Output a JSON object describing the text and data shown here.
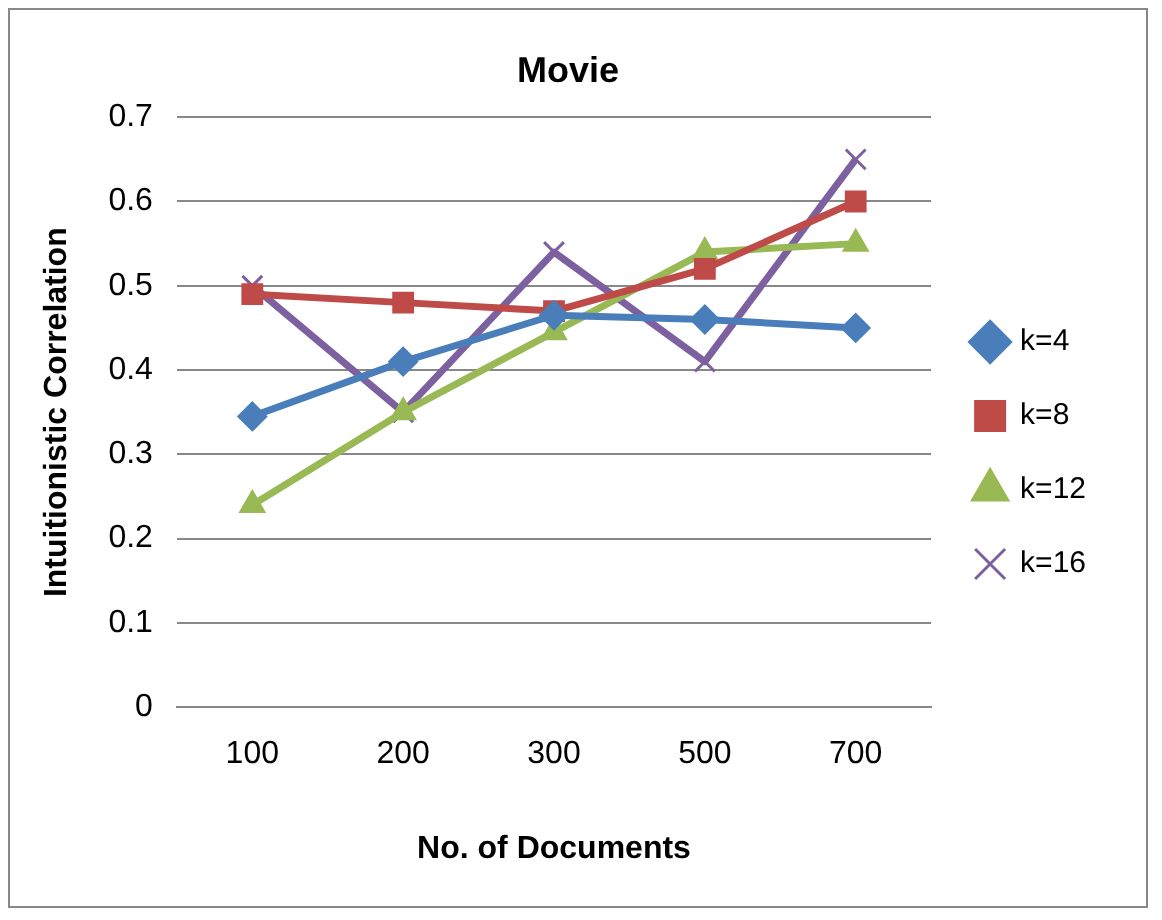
{
  "chart_data": {
    "type": "line",
    "title": "Movie",
    "xlabel": "No. of Documents",
    "ylabel": "Intuitionistic Correlation",
    "categories": [
      "100",
      "200",
      "300",
      "500",
      "700"
    ],
    "series": [
      {
        "name": "k=4",
        "color": "#4a7ebb",
        "marker": "diamond",
        "values": [
          0.345,
          0.41,
          0.465,
          0.46,
          0.45
        ]
      },
      {
        "name": "k=8",
        "color": "#be4b48",
        "marker": "square",
        "values": [
          0.49,
          0.48,
          0.47,
          0.52,
          0.6
        ]
      },
      {
        "name": "k=12",
        "color": "#98b954",
        "marker": "triangle",
        "values": [
          0.24,
          0.35,
          0.445,
          0.54,
          0.55
        ]
      },
      {
        "name": "k=16",
        "color": "#7d60a0",
        "marker": "cross",
        "values": [
          0.5,
          0.35,
          0.54,
          0.41,
          0.65
        ]
      }
    ],
    "ylim": [
      0,
      0.7
    ],
    "yticks": [
      0,
      0.1,
      0.2,
      0.3,
      0.4,
      0.5,
      0.6,
      0.7
    ],
    "grid": "y",
    "legend": "right"
  }
}
